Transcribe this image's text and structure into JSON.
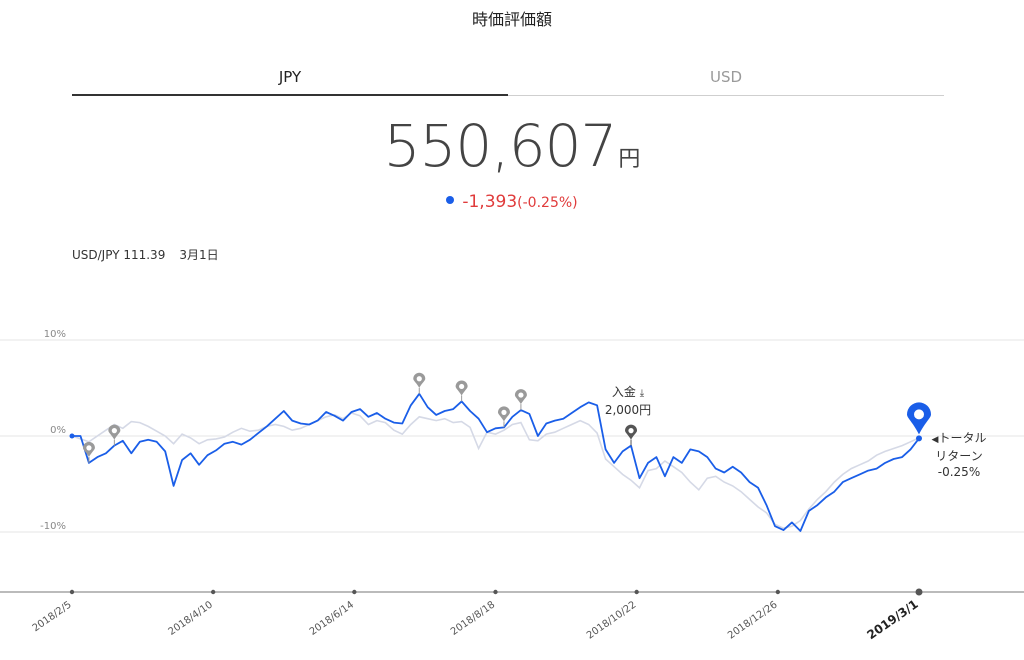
{
  "page": {
    "title": "時価評価額"
  },
  "tabs": [
    {
      "label": "JPY",
      "active": true
    },
    {
      "label": "USD",
      "active": false
    }
  ],
  "valuation": {
    "amount": "550,607",
    "unit": "円",
    "change": "-1,393",
    "change_pct": "(-0.25%)"
  },
  "fx": {
    "pair": "USD/JPY 111.39",
    "date": "3月1日"
  },
  "annotations": {
    "deposit_label": "入金",
    "deposit_amount": "2,000円",
    "total_return_label_1": "トータル",
    "total_return_label_2": "リターン",
    "total_return_value": "-0.25%"
  },
  "colors": {
    "portfolio": "#1a5ee8",
    "benchmark": "#d5d9e6",
    "marker": "#9a9a9a",
    "negative": "#e03b3b"
  },
  "chart_data": {
    "type": "line",
    "y_ticks": [
      "10%",
      "0%",
      "-10%"
    ],
    "x_ticks": [
      "2018/2/5",
      "2018/4/10",
      "2018/6/14",
      "2018/8/18",
      "2018/10/22",
      "2018/12/26",
      "2019/3/1"
    ],
    "ylim": [
      -16,
      10
    ],
    "xlim": [
      0,
      100
    ],
    "series": [
      {
        "values": [
          [
            0,
            0
          ],
          [
            1,
            0
          ],
          [
            2,
            -2.8
          ],
          [
            3,
            -2.2
          ],
          [
            4,
            -1.8
          ],
          [
            5,
            -1
          ],
          [
            6,
            -0.5
          ],
          [
            7,
            -1.8
          ],
          [
            8,
            -0.6
          ],
          [
            9,
            -0.4
          ],
          [
            10,
            -0.6
          ],
          [
            11,
            -1.6
          ],
          [
            12,
            -5.2
          ],
          [
            13,
            -2.5
          ],
          [
            14,
            -1.8
          ],
          [
            15,
            -3
          ],
          [
            16,
            -2
          ],
          [
            17,
            -1.5
          ],
          [
            18,
            -0.8
          ],
          [
            19,
            -0.6
          ],
          [
            20,
            -0.9
          ],
          [
            21,
            -0.4
          ],
          [
            22,
            0.3
          ],
          [
            23,
            1
          ],
          [
            24,
            1.8
          ],
          [
            25,
            2.6
          ],
          [
            26,
            1.6
          ],
          [
            27,
            1.3
          ],
          [
            28,
            1.2
          ],
          [
            29,
            1.6
          ],
          [
            30,
            2.5
          ],
          [
            31,
            2.1
          ],
          [
            32,
            1.6
          ],
          [
            33,
            2.5
          ],
          [
            34,
            2.8
          ],
          [
            35,
            2
          ],
          [
            36,
            2.4
          ],
          [
            37,
            1.8
          ],
          [
            38,
            1.4
          ],
          [
            39,
            1.3
          ],
          [
            40,
            3.2
          ],
          [
            41,
            4.4
          ],
          [
            42,
            3
          ],
          [
            43,
            2.2
          ],
          [
            44,
            2.6
          ],
          [
            45,
            2.8
          ],
          [
            46,
            3.6
          ],
          [
            47,
            2.6
          ],
          [
            48,
            1.8
          ],
          [
            49,
            0.4
          ],
          [
            50,
            0.8
          ],
          [
            51,
            0.9
          ],
          [
            52,
            2
          ],
          [
            53,
            2.7
          ],
          [
            54,
            2.3
          ],
          [
            55,
            0
          ],
          [
            56,
            1.3
          ],
          [
            57,
            1.6
          ],
          [
            58,
            1.8
          ],
          [
            59,
            2.4
          ],
          [
            60,
            3
          ],
          [
            61,
            3.5
          ],
          [
            62,
            3.2
          ],
          [
            63,
            -1.4
          ],
          [
            64,
            -2.8
          ],
          [
            65,
            -1.6
          ],
          [
            66,
            -1
          ],
          [
            67,
            -4.4
          ],
          [
            68,
            -2.8
          ],
          [
            69,
            -2.2
          ],
          [
            70,
            -4.2
          ],
          [
            71,
            -2.2
          ],
          [
            72,
            -2.8
          ],
          [
            73,
            -1.4
          ],
          [
            74,
            -1.6
          ],
          [
            75,
            -2.2
          ],
          [
            76,
            -3.4
          ],
          [
            77,
            -3.8
          ],
          [
            78,
            -3.2
          ],
          [
            79,
            -3.8
          ],
          [
            80,
            -4.8
          ],
          [
            81,
            -5.4
          ],
          [
            82,
            -7.2
          ],
          [
            83,
            -9.4
          ],
          [
            84,
            -9.8
          ],
          [
            85,
            -9
          ],
          [
            86,
            -9.9
          ],
          [
            87,
            -7.8
          ],
          [
            88,
            -7.2
          ],
          [
            89,
            -6.4
          ],
          [
            90,
            -5.8
          ],
          [
            91,
            -4.8
          ],
          [
            92,
            -4.4
          ],
          [
            93,
            -4
          ],
          [
            94,
            -3.6
          ],
          [
            95,
            -3.4
          ],
          [
            96,
            -2.8
          ],
          [
            97,
            -2.4
          ],
          [
            98,
            -2.2
          ],
          [
            99,
            -1.4
          ],
          [
            100,
            -0.25
          ]
        ]
      },
      {
        "values": [
          [
            0,
            0
          ],
          [
            2,
            -0.6
          ],
          [
            4,
            0.6
          ],
          [
            5,
            1.2
          ],
          [
            6,
            0.8
          ],
          [
            7,
            1.5
          ],
          [
            8,
            1.4
          ],
          [
            9,
            1
          ],
          [
            10,
            0.5
          ],
          [
            11,
            0
          ],
          [
            12,
            -0.8
          ],
          [
            13,
            0.2
          ],
          [
            14,
            -0.2
          ],
          [
            15,
            -0.8
          ],
          [
            16,
            -0.4
          ],
          [
            17,
            -0.3
          ],
          [
            18,
            -0.1
          ],
          [
            19,
            0.4
          ],
          [
            20,
            0.8
          ],
          [
            21,
            0.5
          ],
          [
            22,
            0.6
          ],
          [
            23,
            1
          ],
          [
            24,
            1.2
          ],
          [
            25,
            1
          ],
          [
            26,
            0.6
          ],
          [
            27,
            0.8
          ],
          [
            28,
            1.2
          ],
          [
            29,
            1.6
          ],
          [
            30,
            2
          ],
          [
            31,
            2.2
          ],
          [
            32,
            1.8
          ],
          [
            33,
            2.4
          ],
          [
            34,
            2.1
          ],
          [
            35,
            1.2
          ],
          [
            36,
            1.6
          ],
          [
            37,
            1.4
          ],
          [
            38,
            0.6
          ],
          [
            39,
            0.2
          ],
          [
            40,
            1.2
          ],
          [
            41,
            2
          ],
          [
            42,
            1.8
          ],
          [
            43,
            1.6
          ],
          [
            44,
            1.8
          ],
          [
            45,
            1.4
          ],
          [
            46,
            1.5
          ],
          [
            47,
            0.9
          ],
          [
            48,
            -1.3
          ],
          [
            49,
            0.4
          ],
          [
            50,
            0.2
          ],
          [
            51,
            0.6
          ],
          [
            52,
            1.2
          ],
          [
            53,
            1.4
          ],
          [
            54,
            -0.4
          ],
          [
            55,
            -0.5
          ],
          [
            56,
            0.2
          ],
          [
            57,
            0.4
          ],
          [
            58,
            0.8
          ],
          [
            59,
            1.2
          ],
          [
            60,
            1.6
          ],
          [
            61,
            1.2
          ],
          [
            62,
            0.3
          ],
          [
            63,
            -2.4
          ],
          [
            64,
            -3.2
          ],
          [
            65,
            -4
          ],
          [
            66,
            -4.6
          ],
          [
            67,
            -5.4
          ],
          [
            68,
            -3.6
          ],
          [
            69,
            -3.4
          ],
          [
            70,
            -2.6
          ],
          [
            71,
            -3.2
          ],
          [
            72,
            -3.8
          ],
          [
            73,
            -4.8
          ],
          [
            74,
            -5.6
          ],
          [
            75,
            -4.4
          ],
          [
            76,
            -4.2
          ],
          [
            77,
            -4.8
          ],
          [
            78,
            -5.2
          ],
          [
            79,
            -5.8
          ],
          [
            80,
            -6.6
          ],
          [
            81,
            -7.4
          ],
          [
            82,
            -8
          ],
          [
            83,
            -9.2
          ],
          [
            84,
            -9.6
          ],
          [
            85,
            -9.4
          ],
          [
            86,
            -8.8
          ],
          [
            87,
            -7.6
          ],
          [
            88,
            -6.6
          ],
          [
            89,
            -5.8
          ],
          [
            90,
            -4.8
          ],
          [
            91,
            -4
          ],
          [
            92,
            -3.4
          ],
          [
            93,
            -3
          ],
          [
            94,
            -2.6
          ],
          [
            95,
            -2
          ],
          [
            96,
            -1.6
          ],
          [
            97,
            -1.3
          ],
          [
            98,
            -1
          ],
          [
            99,
            -0.6
          ],
          [
            100,
            -0.2
          ]
        ]
      }
    ],
    "event_markers": [
      2,
      5,
      41,
      46,
      51,
      53,
      66
    ]
  }
}
